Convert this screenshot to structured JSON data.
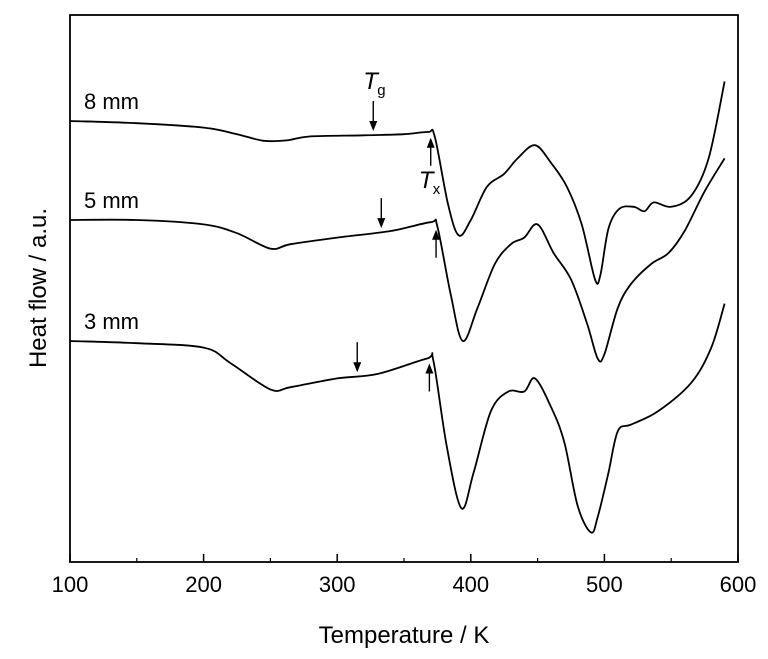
{
  "chart_data": {
    "type": "line",
    "xlabel": "Temperature / K",
    "ylabel": "Heat flow / a.u.",
    "xlim": [
      100,
      600
    ],
    "xticks": [
      100,
      200,
      300,
      400,
      500,
      600
    ],
    "y_ticks_shown": false,
    "grid": false,
    "legend": "none",
    "series": [
      {
        "name": "8 mm",
        "x": [
          100,
          150,
          200,
          225,
          245,
          262,
          280,
          320,
          350,
          368,
          373,
          383,
          391,
          400,
          412,
          425,
          435,
          448,
          460,
          472,
          483,
          493,
          497,
          503,
          511,
          522,
          530,
          537,
          550,
          565,
          578,
          590
        ],
        "y": [
          9.5,
          9.4,
          9.2,
          8.9,
          8.6,
          8.62,
          8.8,
          8.85,
          8.9,
          9.0,
          8.8,
          5.7,
          4.3,
          5.0,
          6.5,
          7.1,
          7.8,
          8.4,
          7.6,
          6.5,
          4.8,
          2.3,
          2.5,
          4.6,
          5.5,
          5.6,
          5.4,
          5.8,
          5.6,
          6.1,
          7.8,
          11.3
        ],
        "label_pos": "left"
      },
      {
        "name": "5 mm",
        "x": [
          100,
          150,
          200,
          225,
          250,
          265,
          300,
          340,
          370,
          375,
          385,
          394,
          405,
          418,
          430,
          440,
          450,
          462,
          475,
          487,
          495,
          500,
          510,
          520,
          535,
          548,
          560,
          575,
          590
        ],
        "y": [
          5.0,
          5.0,
          4.8,
          4.4,
          3.7,
          3.9,
          4.2,
          4.5,
          4.9,
          4.7,
          1.6,
          -0.5,
          1.0,
          3.0,
          3.9,
          4.2,
          4.8,
          3.5,
          2.3,
          0.3,
          -1.3,
          -1.1,
          1.0,
          2.1,
          3.0,
          3.5,
          4.5,
          6.3,
          7.8
        ],
        "label_pos": "left"
      },
      {
        "name": "3 mm",
        "x": [
          100,
          150,
          200,
          220,
          250,
          265,
          300,
          330,
          367,
          372,
          382,
          393,
          402,
          415,
          428,
          440,
          448,
          460,
          470,
          480,
          490,
          495,
          503,
          510,
          520,
          540,
          565,
          580,
          590
        ],
        "y": [
          -0.5,
          -0.6,
          -0.8,
          -1.5,
          -2.7,
          -2.6,
          -2.2,
          -2.0,
          -1.3,
          -1.4,
          -5.3,
          -8.1,
          -6.5,
          -3.7,
          -2.8,
          -2.8,
          -2.2,
          -3.5,
          -5.1,
          -8.0,
          -9.2,
          -8.5,
          -6.5,
          -4.6,
          -4.3,
          -3.7,
          -2.4,
          -0.8,
          1.2
        ],
        "label_pos": "left"
      }
    ],
    "annotations": [
      {
        "label": "T",
        "subscript": "g",
        "series": "8 mm",
        "x": 327,
        "direction": "down"
      },
      {
        "label": "T",
        "subscript": "x",
        "series": "8 mm",
        "x": 370,
        "direction": "up"
      },
      {
        "series": "5 mm",
        "x": 333,
        "direction": "down"
      },
      {
        "series": "5 mm",
        "x": 374,
        "direction": "up"
      },
      {
        "series": "3 mm",
        "x": 315,
        "direction": "down"
      },
      {
        "series": "3 mm",
        "x": 369,
        "direction": "up"
      }
    ]
  }
}
